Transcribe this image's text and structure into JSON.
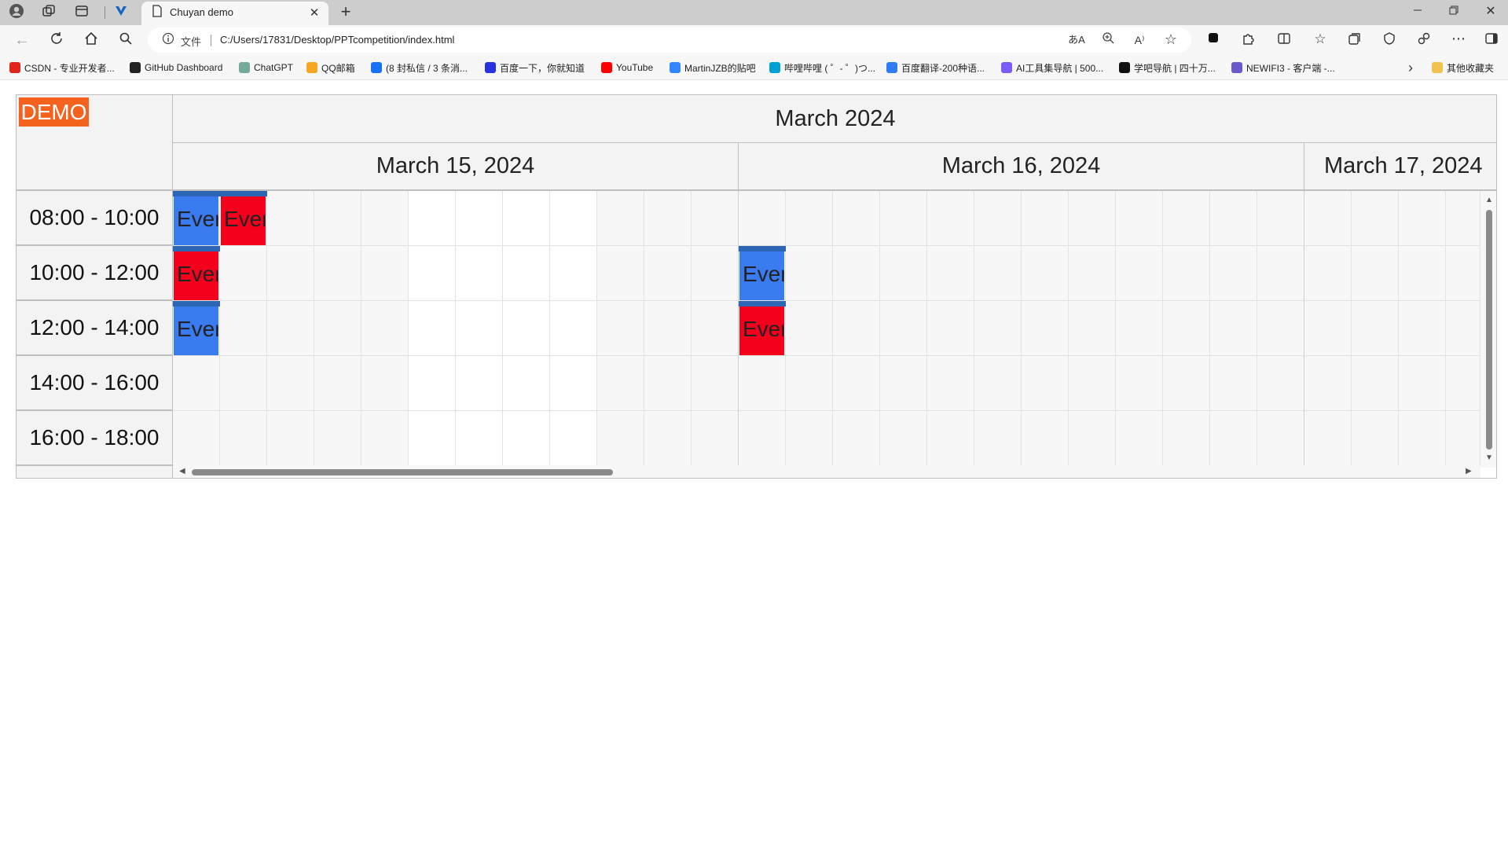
{
  "browser": {
    "tab_title": "Chuyan demo",
    "address_label": "文件",
    "address_url": "C:/Users/17831/Desktop/PPTcompetition/index.html",
    "bookmarks": [
      {
        "label": "CSDN - 专业开发者...",
        "icon": "csdn-icon",
        "color": "#e2231a"
      },
      {
        "label": "GitHub Dashboard",
        "icon": "github-icon",
        "color": "#222222"
      },
      {
        "label": "ChatGPT",
        "icon": "chatgpt-icon",
        "color": "#74aa9c"
      },
      {
        "label": "QQ邮箱",
        "icon": "qqmail-icon",
        "color": "#f5a623"
      },
      {
        "label": "(8 封私信 / 3 条消...",
        "icon": "zhihu-icon",
        "color": "#1772f6"
      },
      {
        "label": "百度一下，你就知道",
        "icon": "baidu-icon",
        "color": "#2932e1"
      },
      {
        "label": "YouTube",
        "icon": "youtube-icon",
        "color": "#ff0000"
      },
      {
        "label": "MartinJZB的贴吧",
        "icon": "tieba-icon",
        "color": "#3385ff"
      },
      {
        "label": "哔哩哔哩 ( ゜- ゜)つ...",
        "icon": "bilibili-icon",
        "color": "#00a1d6"
      },
      {
        "label": "百度翻译-200种语...",
        "icon": "baidu-translate-icon",
        "color": "#2f7cf6"
      },
      {
        "label": "AI工具集导航 | 500...",
        "icon": "ai-tools-icon",
        "color": "#7a5af8"
      },
      {
        "label": "学吧导航 | 四十万...",
        "icon": "xueba-icon",
        "color": "#111111"
      },
      {
        "label": "NEWIFI3 - 客户端 -...",
        "icon": "newifi-icon",
        "color": "#6a5acd"
      }
    ],
    "other_bookmarks": "其他收藏夹"
  },
  "scheduler": {
    "badge": "DEMO",
    "month_label": "March 2024",
    "days": [
      "March 15, 2024",
      "March 16, 2024",
      "March 17, 2024"
    ],
    "time_slots": [
      "08:00 - 10:00",
      "10:00 - 12:00",
      "12:00 - 14:00",
      "14:00 - 16:00",
      "16:00 - 18:00"
    ],
    "event_label": "Ever",
    "events": [
      {
        "day": 0,
        "col": 0,
        "slot": 0,
        "color": "blue"
      },
      {
        "day": 0,
        "col": 1,
        "slot": 0,
        "color": "red"
      },
      {
        "day": 0,
        "col": 0,
        "slot": 1,
        "color": "red"
      },
      {
        "day": 0,
        "col": 0,
        "slot": 2,
        "color": "blue"
      },
      {
        "day": 1,
        "col": 0,
        "slot": 1,
        "color": "blue"
      },
      {
        "day": 1,
        "col": 0,
        "slot": 2,
        "color": "red"
      }
    ]
  }
}
